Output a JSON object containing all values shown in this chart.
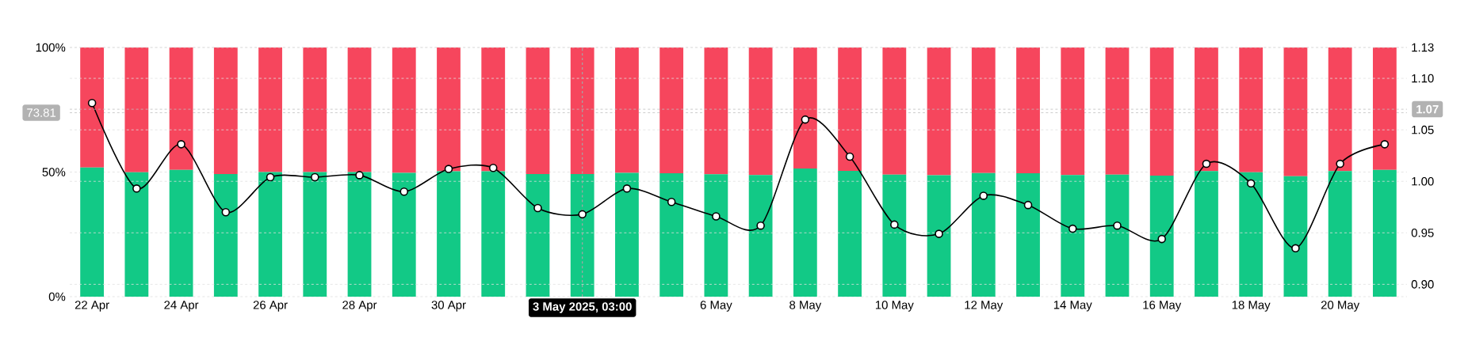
{
  "chart_data": {
    "type": "bar",
    "stacked": true,
    "grid": true,
    "marker": "circle",
    "line_style": "solid",
    "x": [
      "2025-04-22",
      "2025-04-23",
      "2025-04-24",
      "2025-04-25",
      "2025-04-26",
      "2025-04-27",
      "2025-04-28",
      "2025-04-29",
      "2025-04-30",
      "2025-05-01",
      "2025-05-02",
      "2025-05-03",
      "2025-05-04",
      "2025-05-05",
      "2025-05-06",
      "2025-05-07",
      "2025-05-08",
      "2025-05-09",
      "2025-05-10",
      "2025-05-11",
      "2025-05-12",
      "2025-05-13",
      "2025-05-14",
      "2025-05-15",
      "2025-05-16",
      "2025-05-17",
      "2025-05-18",
      "2025-05-19",
      "2025-05-20",
      "2025-05-21"
    ],
    "xlim": [
      "2025-04-21T12:00",
      "2025-05-21T12:00"
    ],
    "xticks": [
      {
        "value": "2025-04-22",
        "label": "22 Apr"
      },
      {
        "value": "2025-04-24",
        "label": "24 Apr"
      },
      {
        "value": "2025-04-26",
        "label": "26 Apr"
      },
      {
        "value": "2025-04-28",
        "label": "28 Apr"
      },
      {
        "value": "2025-04-30",
        "label": "30 Apr"
      },
      {
        "value": "2025-05-06",
        "label": "6 May"
      },
      {
        "value": "2025-05-08",
        "label": "8 May"
      },
      {
        "value": "2025-05-10",
        "label": "10 May"
      },
      {
        "value": "2025-05-12",
        "label": "12 May"
      },
      {
        "value": "2025-05-14",
        "label": "14 May"
      },
      {
        "value": "2025-05-16",
        "label": "16 May"
      },
      {
        "value": "2025-05-18",
        "label": "18 May"
      },
      {
        "value": "2025-05-20",
        "label": "20 May"
      }
    ],
    "ylim": [
      0,
      100
    ],
    "yticks": [
      {
        "value": 0,
        "label": "0%"
      },
      {
        "value": 50,
        "label": "50%"
      },
      {
        "value": 100,
        "label": "100%"
      }
    ],
    "y2lim": [
      0.888,
      1.13
    ],
    "y2ticks": [
      {
        "value": 0.9,
        "label": "0.90"
      },
      {
        "value": 0.95,
        "label": "0.95"
      },
      {
        "value": 1.0,
        "label": "1.00"
      },
      {
        "value": 1.05,
        "label": "1.05"
      },
      {
        "value": 1.1,
        "label": "1.10"
      },
      1.13
    ],
    "series": [
      {
        "color": "#12c986",
        "values": [
          51.8,
          49.9,
          50.9,
          49.2,
          50.0,
          50.0,
          50.0,
          49.7,
          50.3,
          50.3,
          49.2,
          49.2,
          49.7,
          49.5,
          49.1,
          48.8,
          51.4,
          50.5,
          49.0,
          48.7,
          49.6,
          49.5,
          48.8,
          49.0,
          48.6,
          50.4,
          49.9,
          48.3,
          50.4,
          50.9
        ]
      },
      {
        "color": "#f6465d",
        "values": [
          48.2,
          50.1,
          49.1,
          50.8,
          50.0,
          50.0,
          50.0,
          50.3,
          49.7,
          49.7,
          50.8,
          50.8,
          50.3,
          50.5,
          50.9,
          51.2,
          48.6,
          49.5,
          51.0,
          51.3,
          50.4,
          50.5,
          51.2,
          51.0,
          51.4,
          49.6,
          50.1,
          51.7,
          49.6,
          49.1
        ]
      },
      {
        "type": "line",
        "axis": "y2",
        "color": "#000000",
        "values": [
          1.076,
          0.993,
          1.036,
          0.97,
          1.004,
          1.004,
          1.006,
          0.99,
          1.012,
          1.013,
          0.974,
          0.968,
          0.993,
          0.98,
          0.966,
          0.957,
          1.06,
          1.024,
          0.958,
          0.949,
          0.986,
          0.977,
          0.954,
          0.957,
          0.944,
          1.017,
          0.998,
          0.935,
          1.017,
          1.036
        ]
      }
    ],
    "ref_lines": [
      {
        "axis": "x",
        "value": "2025-05-03",
        "label": "3 May 2025, 03:00"
      },
      {
        "axis": "y",
        "value": 73.81,
        "label": "73.81"
      },
      {
        "axis": "y2",
        "value": 1.07,
        "label": "1.07"
      }
    ]
  }
}
